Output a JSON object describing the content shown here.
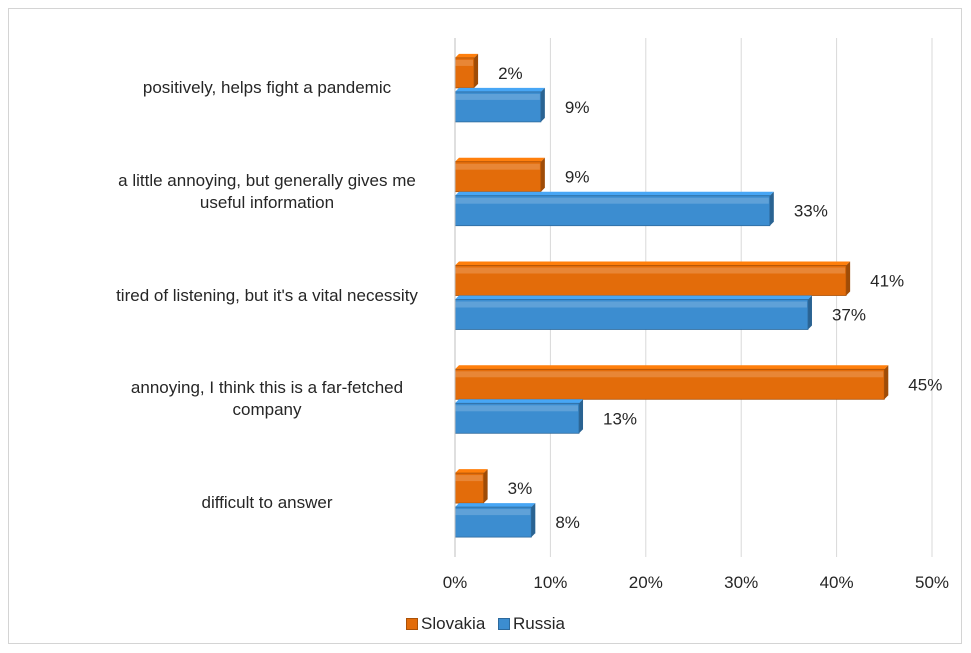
{
  "chart_data": {
    "type": "bar",
    "orientation": "horizontal",
    "title": "",
    "xlabel": "",
    "ylabel": "",
    "categories": [
      "positively, helps fight a pandemic",
      "a little annoying, but generally gives me useful information",
      "tired of listening, but it's a vital necessity",
      "annoying, I think this is a far-fetched company",
      "difficult to answer"
    ],
    "category_lines": [
      [
        "positively, helps fight a pandemic"
      ],
      [
        "a little annoying, but generally gives me",
        "useful information"
      ],
      [
        "tired of listening, but it's a vital necessity"
      ],
      [
        "annoying, I think this is a far-fetched",
        "company"
      ],
      [
        "difficult to answer"
      ]
    ],
    "series": [
      {
        "name": "Slovakia",
        "values": [
          2,
          9,
          41,
          45,
          3
        ],
        "labels": [
          "2%",
          "9%",
          "41%",
          "45%",
          "3%"
        ],
        "color": "#E36C0A"
      },
      {
        "name": "Russia",
        "values": [
          9,
          33,
          37,
          13,
          8
        ],
        "labels": [
          "9%",
          "33%",
          "37%",
          "13%",
          "8%"
        ],
        "color": "#3C8DD0"
      }
    ],
    "xlim": [
      0,
      50
    ],
    "xticks": [
      "0%",
      "10%",
      "20%",
      "30%",
      "40%",
      "50%"
    ],
    "grid": true,
    "legend_position": "bottom"
  }
}
